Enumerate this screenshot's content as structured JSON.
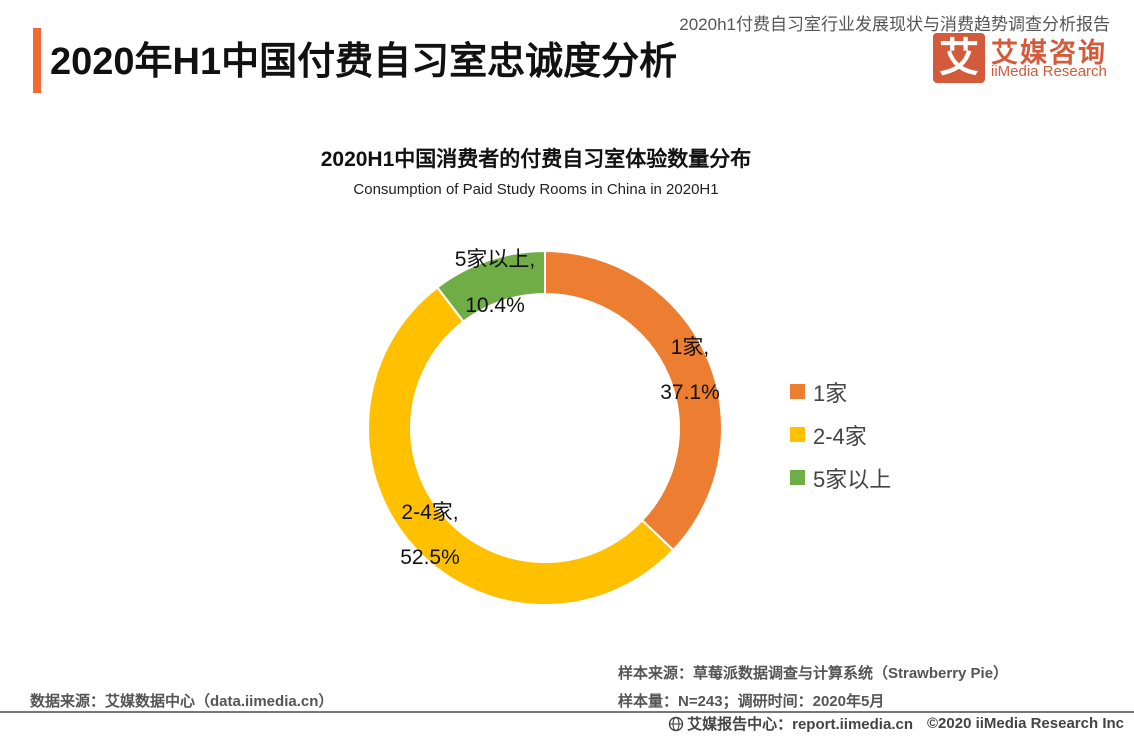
{
  "header": {
    "page_title": "2020年H1中国付费自习室忠诚度分析",
    "report_title": "2020h1付费自习室行业发展现状与消费趋势调查分析报告",
    "logo": {
      "icon_char": "艾",
      "name_cn": "艾媒咨询",
      "name_en": "iiMedia Research"
    },
    "accent_color": "#f56a33",
    "brand_color": "#d35a3a"
  },
  "chart_data": {
    "type": "pie",
    "variant": "donut",
    "title": "2020H1中国消费者的付费自习室体验数量分布",
    "subtitle": "Consumption of Paid Study Rooms in China in 2020H1",
    "categories": [
      "1家",
      "2-4家",
      "5家以上"
    ],
    "values": [
      37.1,
      52.5,
      10.4
    ],
    "unit": "%",
    "colors": [
      "#ed7d31",
      "#ffc000",
      "#70ad47"
    ],
    "data_labels": [
      {
        "name": "1家,",
        "value": "37.1%"
      },
      {
        "name": "2-4家,",
        "value": "52.5%"
      },
      {
        "name": "5家以上,",
        "value": "10.4%"
      }
    ],
    "start": "12 o'clock",
    "direction": "clockwise",
    "legend": {
      "position": "right",
      "items": [
        "1家",
        "2-4家",
        "5家以上"
      ]
    }
  },
  "footer": {
    "data_source": "数据来源：艾媒数据中心（data.iimedia.cn）",
    "sample_source": "样本来源：草莓派数据调查与计算系统（Strawberry Pie）",
    "sample_size": "样本量：N=243；调研时间：2020年5月",
    "report_center": "艾媒报告中心：report.iimedia.cn",
    "copyright": "©2020  iiMedia Research  Inc"
  }
}
